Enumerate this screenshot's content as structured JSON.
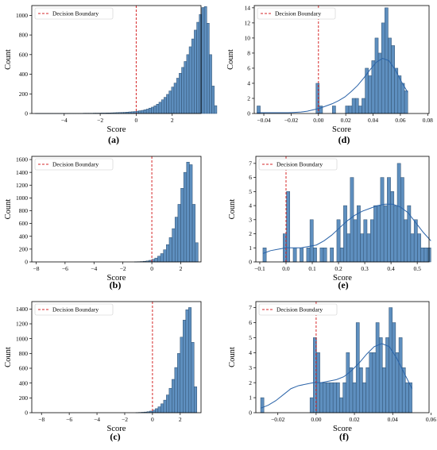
{
  "colors": {
    "bar_fill": "#5e8fbf",
    "bar_stroke": "#2f4f6f",
    "kde": "#2a63a8",
    "boundary": "#d62728"
  },
  "chart_data": [
    {
      "panel": "(a)",
      "type": "bar",
      "legend": "Decision Boundary",
      "legend_position": "top-left",
      "xlabel": "Score",
      "ylabel": "Count",
      "xlim": [
        -5.8,
        3.6
      ],
      "ylim": [
        0,
        1100
      ],
      "xticks": [
        -4,
        -2,
        0,
        2
      ],
      "yticks": [
        0,
        200,
        400,
        600,
        800,
        1000
      ],
      "boundary_x": 0,
      "bin_width": 0.14,
      "bin_start": -5.6,
      "kde": false,
      "counts": [
        1,
        1,
        1,
        1,
        1,
        1,
        1,
        1,
        1,
        1,
        1,
        1,
        1,
        2,
        2,
        2,
        2,
        2,
        2,
        3,
        3,
        3,
        3,
        4,
        4,
        4,
        5,
        5,
        6,
        6,
        7,
        8,
        9,
        10,
        11,
        12,
        14,
        16,
        18,
        20,
        24,
        28,
        32,
        38,
        45,
        55,
        65,
        78,
        95,
        115,
        140,
        165,
        195,
        230,
        270,
        310,
        360,
        410,
        470,
        530,
        600,
        680,
        760,
        850,
        930,
        1010,
        1080,
        1090,
        920,
        600,
        280,
        80
      ]
    },
    {
      "panel": "(b)",
      "type": "bar",
      "legend": "Decision Boundary",
      "legend_position": "top-left",
      "xlabel": "Score",
      "ylabel": "Count",
      "xlim": [
        -8.3,
        3.4
      ],
      "ylim": [
        0,
        1650
      ],
      "xticks": [
        -8,
        -6,
        -4,
        -2,
        0,
        2
      ],
      "yticks": [
        0,
        200,
        400,
        600,
        800,
        1000,
        1200,
        1400,
        1600
      ],
      "boundary_x": 0,
      "bin_width": 0.2,
      "bin_start": -1.2,
      "kde": false,
      "counts": [
        2,
        4,
        6,
        10,
        15,
        25,
        40,
        60,
        90,
        130,
        190,
        270,
        380,
        520,
        700,
        900,
        1150,
        1400,
        1560,
        1520,
        900,
        300
      ]
    },
    {
      "panel": "(c)",
      "type": "bar",
      "legend": "Decision Boundary",
      "legend_position": "top-left",
      "xlabel": "Score",
      "ylabel": "Count",
      "xlim": [
        -8.7,
        3.5
      ],
      "ylim": [
        0,
        1500
      ],
      "xticks": [
        -8,
        -6,
        -4,
        -2,
        0,
        2
      ],
      "yticks": [
        0,
        200,
        400,
        600,
        800,
        1000,
        1200,
        1400
      ],
      "boundary_x": 0,
      "bin_width": 0.2,
      "bin_start": -1.2,
      "kde": false,
      "counts": [
        2,
        4,
        6,
        9,
        14,
        22,
        35,
        55,
        80,
        120,
        170,
        240,
        330,
        450,
        610,
        800,
        1020,
        1250,
        1390,
        1420,
        950,
        350
      ]
    },
    {
      "panel": "(d)",
      "type": "bar",
      "legend": "Decision Boundary",
      "legend_position": "top-left",
      "xlabel": "Score",
      "ylabel": "Count",
      "xlim": [
        -0.047,
        0.081
      ],
      "ylim": [
        0,
        14.3
      ],
      "xticks": [
        -0.04,
        -0.02,
        0.0,
        0.02,
        0.04,
        0.06,
        0.08
      ],
      "yticks": [
        0,
        2,
        4,
        6,
        8,
        10,
        12,
        14
      ],
      "boundary_x": 0,
      "bin_width": 0.0024,
      "bin_start": -0.045,
      "kde": true,
      "counts": [
        1,
        0,
        0,
        0,
        0,
        0,
        0,
        0,
        0,
        0,
        0,
        0,
        0,
        0,
        0,
        0,
        0,
        0,
        4,
        1,
        0,
        0,
        0,
        1,
        0,
        0,
        0,
        1,
        1,
        2,
        2,
        1,
        2,
        6,
        5,
        7,
        10,
        8,
        12,
        14,
        10,
        9,
        6,
        5,
        4,
        3
      ],
      "kde_values": [
        0.1,
        0.1,
        0.1,
        0.1,
        0.1,
        0.1,
        0.15,
        0.2,
        0.3,
        0.5,
        0.7,
        1.0,
        1.3,
        1.7,
        2.2,
        2.9,
        3.7,
        4.7,
        5.8,
        6.8,
        7.3,
        7.0,
        5.8,
        4.2,
        2.8
      ]
    },
    {
      "panel": "(e)",
      "type": "bar",
      "legend": "Decision Boundary",
      "legend_position": "top-left",
      "xlabel": "Score",
      "ylabel": "Count",
      "xlim": [
        -0.115,
        0.545
      ],
      "ylim": [
        0,
        7.5
      ],
      "xticks": [
        -0.1,
        0.0,
        0.1,
        0.2,
        0.3,
        0.4,
        0.5
      ],
      "yticks": [
        0,
        1,
        2,
        3,
        4,
        5,
        6,
        7
      ],
      "boundary_x": 0,
      "bin_width": 0.0128,
      "bin_start": -0.088,
      "kde": true,
      "counts": [
        1,
        0,
        0,
        0,
        0,
        0,
        2,
        5,
        0,
        1,
        0,
        1,
        0,
        1,
        3,
        1,
        0,
        1,
        1,
        0,
        1,
        0,
        3,
        1,
        4,
        2,
        6,
        3,
        4,
        2,
        3,
        2,
        3,
        4,
        4,
        6,
        4,
        6,
        5,
        4,
        7,
        6,
        3,
        4,
        2,
        3,
        2,
        1,
        1,
        1
      ],
      "kde_values": [
        0.6,
        0.8,
        0.9,
        1.0,
        1.0,
        1.0,
        1.1,
        1.2,
        1.5,
        1.9,
        2.4,
        2.9,
        3.3,
        3.6,
        3.8,
        4.0,
        4.1,
        4.1,
        3.9,
        3.5,
        2.8,
        2.1,
        1.5
      ]
    },
    {
      "panel": "(f)",
      "type": "bar",
      "legend": "Decision Boundary",
      "legend_position": "top-left",
      "xlabel": "Score",
      "ylabel": "Count",
      "xlim": [
        -0.0315,
        0.059
      ],
      "ylim": [
        0,
        7.4
      ],
      "xticks": [
        -0.02,
        0.0,
        0.02,
        0.04,
        0.06
      ],
      "yticks": [
        0,
        1,
        2,
        3,
        4,
        5,
        6,
        7
      ],
      "boundary_x": 0,
      "bin_width": 0.00172,
      "bin_start": -0.029,
      "kde": true,
      "counts": [
        1,
        0,
        0,
        0,
        0,
        0,
        0,
        0,
        0,
        0,
        0,
        0,
        0,
        0,
        0,
        1,
        5,
        4,
        2,
        2,
        2,
        2,
        2,
        2,
        1,
        2,
        4,
        3,
        2,
        6,
        3,
        2,
        3,
        4,
        4,
        6,
        5,
        3,
        5,
        7,
        6,
        4,
        5,
        3,
        2,
        2
      ],
      "kde_values": [
        0.3,
        0.5,
        0.8,
        1.2,
        1.6,
        1.8,
        1.9,
        2.0,
        2.0,
        2.1,
        2.2,
        2.4,
        2.8,
        3.3,
        3.9,
        4.4,
        4.6,
        4.4,
        3.6,
        2.6,
        1.6
      ]
    }
  ]
}
